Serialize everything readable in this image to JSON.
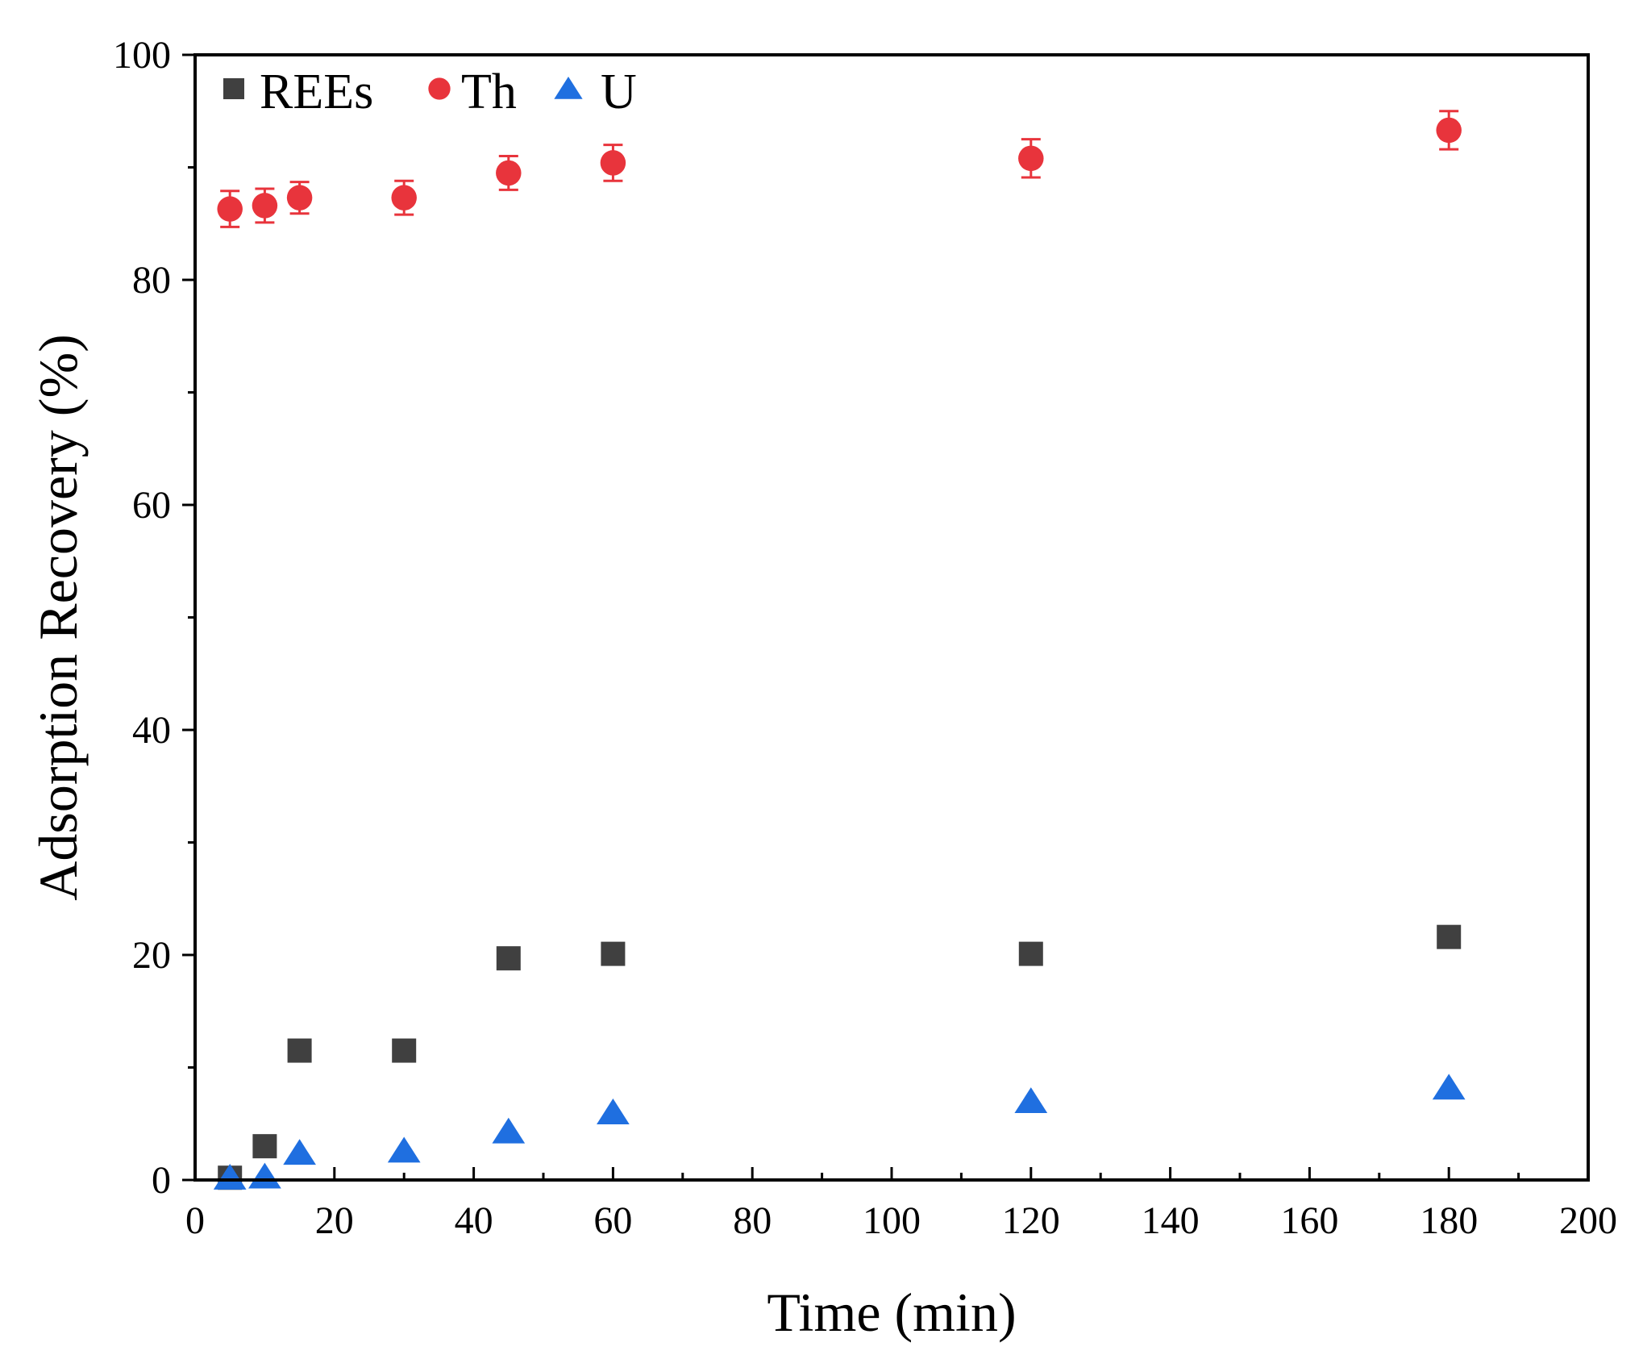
{
  "chart_data": {
    "type": "scatter",
    "xlabel": "Time (min)",
    "ylabel": "Adsorption Recovery (%)",
    "xlim": [
      0,
      200
    ],
    "ylim": [
      0,
      100
    ],
    "xticks": [
      0,
      20,
      40,
      60,
      80,
      100,
      120,
      140,
      160,
      180,
      200
    ],
    "yticks": [
      0,
      20,
      40,
      60,
      80,
      100
    ],
    "x_minor_step": 10,
    "y_minor_step": 10,
    "grid": false,
    "legend_position": "top-left",
    "series": [
      {
        "name": "REEs",
        "marker": "square",
        "color": "#404040",
        "x": [
          5,
          10,
          15,
          30,
          45,
          60,
          120,
          180
        ],
        "y": [
          0.2,
          3.0,
          11.5,
          11.5,
          19.7,
          20.1,
          20.1,
          21.6
        ],
        "error": [
          0,
          0,
          0,
          0.6,
          0,
          0,
          0,
          0
        ]
      },
      {
        "name": "Th",
        "marker": "circle",
        "color": "#e8343c",
        "x": [
          5,
          10,
          15,
          30,
          45,
          60,
          120,
          180
        ],
        "y": [
          86.3,
          86.6,
          87.3,
          87.3,
          89.5,
          90.4,
          90.8,
          93.3
        ],
        "error": [
          1.6,
          1.5,
          1.4,
          1.5,
          1.5,
          1.6,
          1.7,
          1.7
        ]
      },
      {
        "name": "U",
        "marker": "triangle",
        "color": "#1f6fe0",
        "x": [
          5,
          10,
          15,
          30,
          45,
          60,
          120,
          180
        ],
        "y": [
          0.2,
          0.3,
          2.4,
          2.6,
          4.3,
          6.0,
          7.0,
          8.2
        ],
        "error": [
          0,
          0,
          0,
          0,
          0,
          0,
          0,
          0
        ]
      }
    ]
  }
}
